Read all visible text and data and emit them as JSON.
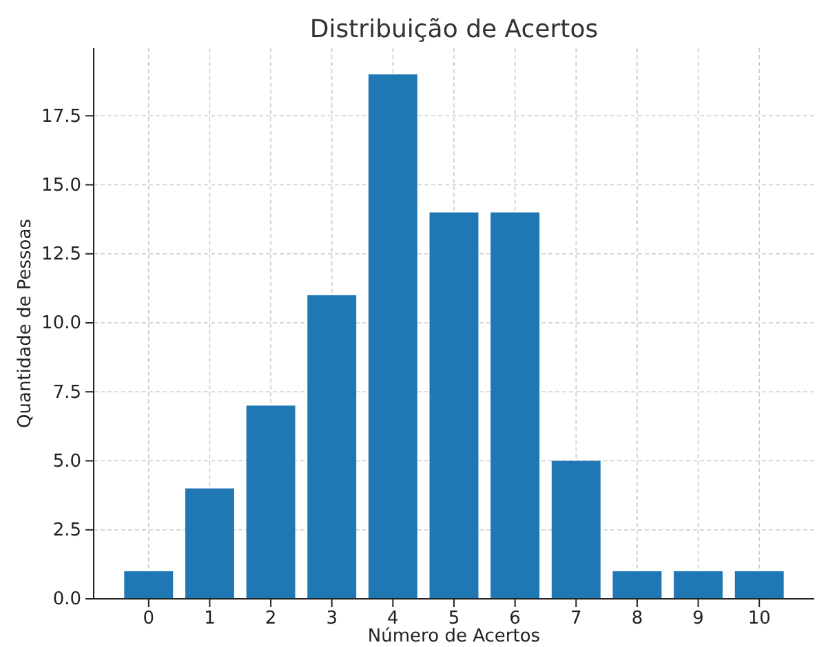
{
  "chart_data": {
    "type": "bar",
    "title": "Distribuição de Acertos",
    "xlabel": "Número de Acertos",
    "ylabel": "Quantidade de Pessoas",
    "categories": [
      "0",
      "1",
      "2",
      "3",
      "4",
      "5",
      "6",
      "7",
      "8",
      "9",
      "10"
    ],
    "values": [
      1,
      4,
      7,
      11,
      19,
      14,
      14,
      5,
      1,
      1,
      1
    ],
    "color": "#1f77b4",
    "ylim": [
      0,
      19.95
    ],
    "yticks": [
      {
        "value": 0,
        "label": "0.0"
      },
      {
        "value": 2.5,
        "label": "2.5"
      },
      {
        "value": 5,
        "label": "5.0"
      },
      {
        "value": 7.5,
        "label": "7.5"
      },
      {
        "value": 10,
        "label": "10.0"
      },
      {
        "value": 12.5,
        "label": "12.5"
      },
      {
        "value": 15,
        "label": "15.0"
      },
      {
        "value": 17.5,
        "label": "17.5"
      }
    ],
    "grid": true
  }
}
